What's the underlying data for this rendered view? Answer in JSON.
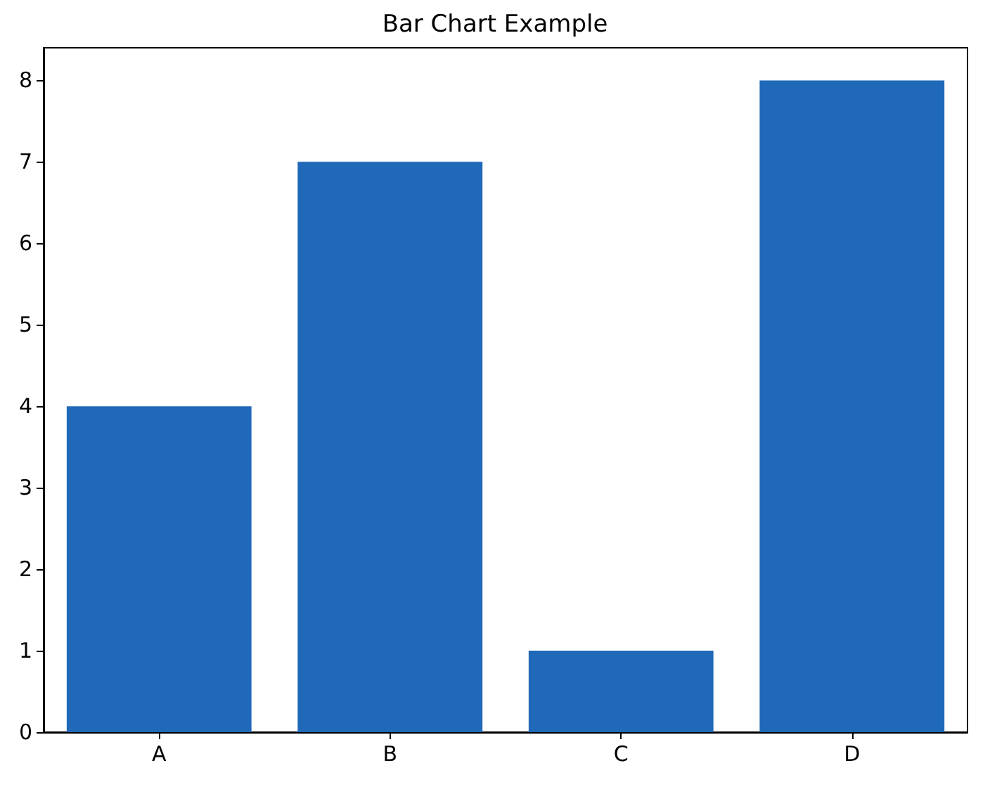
{
  "chart_data": {
    "type": "bar",
    "title": "Bar Chart Example",
    "categories": [
      "A",
      "B",
      "C",
      "D"
    ],
    "values": [
      4,
      7,
      1,
      8
    ],
    "color": "#2068b8",
    "ylim": [
      0,
      8.4
    ],
    "yticks": [
      0,
      1,
      2,
      3,
      4,
      5,
      6,
      7,
      8
    ],
    "grid": false
  }
}
